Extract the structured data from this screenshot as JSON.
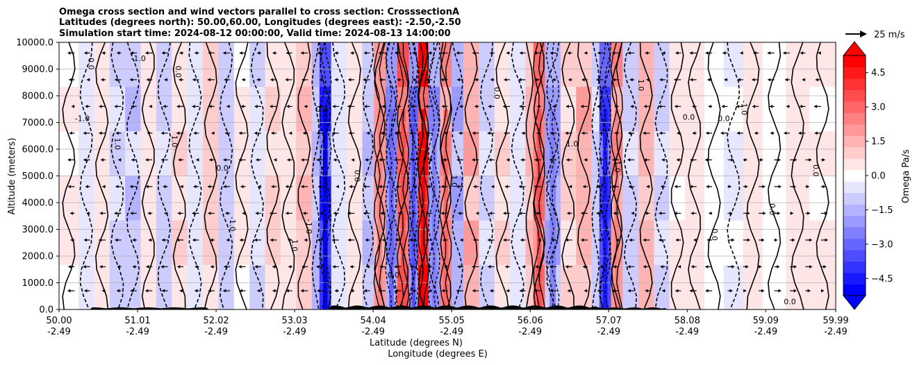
{
  "title_lines": [
    "Omega cross section and wind vectors parallel to cross section: CrosssectionA",
    "Latitudes (degrees north): 50.00,60.00, Longitudes (degrees east): -2.50,-2.50",
    "Simulation start time: 2024-08-12 00:00:00, Valid time: 2024-08-13 14:00:00"
  ],
  "reference_vector": {
    "label": "25 m/s"
  },
  "colors": {
    "positive_max": "#ff0000",
    "negative_max": "#0000ff",
    "neutral": "#ffffff",
    "contour_line": "#000000",
    "grid": "#b0b0b0",
    "terrain": "#000000"
  },
  "chart_data": {
    "type": "heatmap",
    "variable": "Omega",
    "units": "Pa/s",
    "ylabel": "Altitude (meters)",
    "xlabel_line1": "Latitude (degrees N)",
    "xlabel_line2": "Longitude (degrees E)",
    "ylim": [
      0,
      10000
    ],
    "xlim": [
      50.0,
      59.99
    ],
    "yticks": [
      "0.0",
      "1000.0",
      "2000.0",
      "3000.0",
      "4000.0",
      "5000.0",
      "6000.0",
      "7000.0",
      "8000.0",
      "9000.0",
      "10000.0"
    ],
    "ytick_values": [
      0,
      1000,
      2000,
      3000,
      4000,
      5000,
      6000,
      7000,
      8000,
      9000,
      10000
    ],
    "xticks": [
      {
        "lat": "50.00",
        "lon": "-2.49",
        "value": 50.0
      },
      {
        "lat": "51.01",
        "lon": "-2.49",
        "value": 51.01
      },
      {
        "lat": "52.02",
        "lon": "-2.49",
        "value": 52.02
      },
      {
        "lat": "53.03",
        "lon": "-2.49",
        "value": 53.03
      },
      {
        "lat": "54.04",
        "lon": "-2.49",
        "value": 54.04
      },
      {
        "lat": "55.05",
        "lon": "-2.49",
        "value": 55.05
      },
      {
        "lat": "56.06",
        "lon": "-2.49",
        "value": 56.06
      },
      {
        "lat": "57.07",
        "lon": "-2.49",
        "value": 57.07
      },
      {
        "lat": "58.08",
        "lon": "-2.49",
        "value": 58.08
      },
      {
        "lat": "59.09",
        "lon": "-2.49",
        "value": 59.09
      },
      {
        "lat": "59.99",
        "lon": "-2.49",
        "value": 59.99
      }
    ],
    "grid": true,
    "colorbar": {
      "label": "Omega Pa/s",
      "range": [
        -5.25,
        5.25
      ],
      "levels": 21,
      "extend": "both",
      "ticks": [
        "4.5",
        "3.0",
        "1.5",
        "0.0",
        "−1.5",
        "−3.0",
        "−4.5"
      ],
      "tick_values": [
        4.5,
        3.0,
        1.5,
        0.0,
        -1.5,
        -3.0,
        -4.5
      ]
    },
    "bands": [
      {
        "lat": 50.0,
        "omega": 0.3
      },
      {
        "lat": 50.25,
        "omega": -0.5
      },
      {
        "lat": 50.45,
        "omega": 0.6
      },
      {
        "lat": 50.65,
        "omega": -0.9
      },
      {
        "lat": 50.85,
        "omega": -1.3
      },
      {
        "lat": 51.05,
        "omega": 0.5
      },
      {
        "lat": 51.25,
        "omega": -1.1
      },
      {
        "lat": 51.45,
        "omega": 0.9
      },
      {
        "lat": 51.65,
        "omega": -0.6
      },
      {
        "lat": 51.85,
        "omega": 1.1
      },
      {
        "lat": 52.05,
        "omega": -1.2
      },
      {
        "lat": 52.25,
        "omega": 0.4
      },
      {
        "lat": 52.45,
        "omega": -0.8
      },
      {
        "lat": 52.65,
        "omega": 1.0
      },
      {
        "lat": 52.85,
        "omega": 0.7
      },
      {
        "lat": 53.05,
        "omega": 1.4
      },
      {
        "lat": 53.25,
        "omega": -1.6
      },
      {
        "lat": 53.35,
        "omega": -4.6
      },
      {
        "lat": 53.5,
        "omega": -0.7
      },
      {
        "lat": 53.7,
        "omega": 0.5
      },
      {
        "lat": 53.9,
        "omega": -1.4
      },
      {
        "lat": 54.05,
        "omega": 2.2
      },
      {
        "lat": 54.2,
        "omega": -2.6
      },
      {
        "lat": 54.35,
        "omega": 3.4
      },
      {
        "lat": 54.5,
        "omega": -3.2
      },
      {
        "lat": 54.62,
        "omega": 5.0
      },
      {
        "lat": 54.75,
        "omega": -2.4
      },
      {
        "lat": 54.9,
        "omega": 2.6
      },
      {
        "lat": 55.05,
        "omega": -1.8
      },
      {
        "lat": 55.2,
        "omega": 1.9
      },
      {
        "lat": 55.4,
        "omega": -1.0
      },
      {
        "lat": 55.6,
        "omega": 0.8
      },
      {
        "lat": 55.8,
        "omega": -0.7
      },
      {
        "lat": 56.0,
        "omega": 1.6
      },
      {
        "lat": 56.1,
        "omega": 3.2
      },
      {
        "lat": 56.25,
        "omega": -2.2
      },
      {
        "lat": 56.45,
        "omega": 0.9
      },
      {
        "lat": 56.65,
        "omega": 1.8
      },
      {
        "lat": 56.85,
        "omega": -1.2
      },
      {
        "lat": 56.95,
        "omega": -4.2
      },
      {
        "lat": 57.1,
        "omega": 2.4
      },
      {
        "lat": 57.25,
        "omega": -1.1
      },
      {
        "lat": 57.45,
        "omega": 1.7
      },
      {
        "lat": 57.65,
        "omega": -0.9
      },
      {
        "lat": 57.85,
        "omega": 0.4
      },
      {
        "lat": 58.05,
        "omega": 0.6
      },
      {
        "lat": 58.3,
        "omega": 0.2
      },
      {
        "lat": 58.55,
        "omega": -0.3
      },
      {
        "lat": 58.8,
        "omega": 0.5
      },
      {
        "lat": 59.05,
        "omega": 0.1
      },
      {
        "lat": 59.35,
        "omega": 0.6
      },
      {
        "lat": 59.65,
        "omega": 0.3
      },
      {
        "lat": 59.99,
        "omega": 0.4
      }
    ],
    "contour_labels": [
      {
        "text": "-1.0",
        "lat": 50.3,
        "alt": 7050
      },
      {
        "text": "1.0",
        "lat": 50.72,
        "alt": 6200
      },
      {
        "text": "0.0",
        "lat": 50.38,
        "alt": 9200
      },
      {
        "text": "-1.0",
        "lat": 51.02,
        "alt": 9300
      },
      {
        "text": "0.0",
        "lat": 51.5,
        "alt": 8900
      },
      {
        "text": "1.0",
        "lat": 51.45,
        "alt": 6300
      },
      {
        "text": "0.0",
        "lat": 52.1,
        "alt": 5200
      },
      {
        "text": "-1.0",
        "lat": 52.2,
        "alt": 3200
      },
      {
        "text": "1.0",
        "lat": 53.0,
        "alt": 2400
      },
      {
        "text": "0.0",
        "lat": 53.38,
        "alt": 7400
      },
      {
        "text": "-1.0",
        "lat": 53.18,
        "alt": 3100
      },
      {
        "text": "0.0",
        "lat": 53.8,
        "alt": 5000
      },
      {
        "text": "0.0",
        "lat": 54.3,
        "alt": 1200
      },
      {
        "text": "1.0",
        "lat": 55.05,
        "alt": 4800
      },
      {
        "text": "0.0",
        "lat": 55.6,
        "alt": 8100
      },
      {
        "text": "1.0",
        "lat": 56.6,
        "alt": 6100
      },
      {
        "text": "-1.0",
        "lat": 57.15,
        "alt": 5400
      },
      {
        "text": "1.0",
        "lat": 57.45,
        "alt": 8400
      },
      {
        "text": "0.0",
        "lat": 58.1,
        "alt": 7100
      },
      {
        "text": "0.0",
        "lat": 58.4,
        "alt": 2800
      },
      {
        "text": "-1.0",
        "lat": 58.78,
        "alt": 7550
      },
      {
        "text": "0.0",
        "lat": 58.55,
        "alt": 7050
      },
      {
        "text": "0.0",
        "lat": 59.14,
        "alt": 3750
      },
      {
        "text": "0.0",
        "lat": 59.7,
        "alt": 5200
      },
      {
        "text": "0.0",
        "lat": 59.4,
        "alt": 200
      }
    ]
  }
}
